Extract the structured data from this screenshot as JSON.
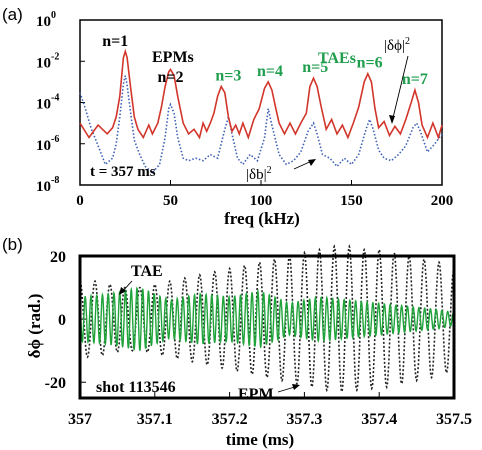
{
  "panel_a": {
    "label": "(a)",
    "xlabel": "freq (kHz)",
    "time_label": "t = 357 ms",
    "group_epm_label": "EPMs",
    "group_tae_label": "TAEs",
    "series_labels": {
      "dphi": "|δϕ|",
      "db": "|δb|",
      "exponent": "2"
    },
    "modes": [
      {
        "label": "n=1",
        "freq": 25,
        "color": "#000000"
      },
      {
        "label": "n=2",
        "freq": 50,
        "color": "#000000"
      },
      {
        "label": "n=3",
        "freq": 82,
        "color": "#1f9e4d"
      },
      {
        "label": "n=4",
        "freq": 105,
        "color": "#1f9e4d"
      },
      {
        "label": "n=5",
        "freq": 130,
        "color": "#1f9e4d"
      },
      {
        "label": "n=6",
        "freq": 160,
        "color": "#1f9e4d"
      },
      {
        "label": "n=7",
        "freq": 185,
        "color": "#1f9e4d"
      }
    ]
  },
  "panel_b": {
    "label": "(b)",
    "xlabel": "time (ms)",
    "ylabel": "δϕ (rad.)",
    "shot_label": "shot 113546",
    "tae_label": "TAE",
    "epm_label": "EPM"
  },
  "colors": {
    "dphi": "#d2362b",
    "db": "#3b5fb5",
    "tae": "#1fa33a",
    "epm": "#222222",
    "tae_text": "#1f9e4d"
  },
  "chart_data": [
    {
      "type": "line",
      "title": "",
      "xlabel": "freq (kHz)",
      "ylabel": "",
      "xlim": [
        0,
        200
      ],
      "ylim": [
        1e-08,
        1
      ],
      "yscale": "log",
      "x_ticks": [
        "0",
        "50",
        "100",
        "150",
        "200"
      ],
      "y_ticks": [
        "10^0",
        "10^-2",
        "10^-4",
        "10^-6",
        "10^-8"
      ],
      "grid": false,
      "series": [
        {
          "name": "|δϕ|^2",
          "x": [
            0,
            5,
            10,
            15,
            18,
            20,
            22,
            24,
            25,
            26,
            28,
            30,
            32,
            35,
            38,
            40,
            43,
            45,
            47,
            49,
            50,
            52,
            54,
            57,
            60,
            63,
            66,
            68,
            70,
            72,
            74,
            76,
            78,
            80,
            82,
            84,
            86,
            88,
            90,
            93,
            96,
            99,
            102,
            104,
            106,
            108,
            110,
            113,
            116,
            119,
            122,
            125,
            127,
            129,
            131,
            133,
            136,
            139,
            142,
            145,
            148,
            151,
            154,
            157,
            159,
            161,
            163,
            165,
            168,
            171,
            174,
            177,
            180,
            183,
            185,
            187,
            189,
            192,
            195,
            198,
            200
          ],
          "y": [
            1e-05,
            2e-06,
            8e-06,
            3e-06,
            6e-06,
            2e-05,
            0.0002,
            0.015,
            0.03,
            0.015,
            0.0005,
            2e-05,
            5e-06,
            2e-06,
            8e-06,
            3e-06,
            1e-05,
            6e-05,
            0.0006,
            0.003,
            0.004,
            0.002,
            0.0002,
            1e-05,
            3e-06,
            5e-06,
            2e-06,
            1e-05,
            4e-06,
            1e-05,
            3e-05,
            0.0002,
            0.0006,
            0.0003,
            2e-05,
            4e-06,
            8e-06,
            3e-06,
            1e-05,
            2e-06,
            1.5e-05,
            5e-05,
            0.0005,
            0.001,
            0.0004,
            6e-05,
            1e-05,
            3e-06,
            1e-05,
            3e-06,
            1e-05,
            3e-05,
            0.0006,
            0.0015,
            0.0006,
            8e-05,
            5e-06,
            1.5e-05,
            3e-06,
            8e-06,
            2e-06,
            1e-05,
            6e-05,
            0.001,
            0.0025,
            0.001,
            5e-05,
            6e-06,
            1.2e-05,
            2.5e-06,
            7e-06,
            3e-06,
            1.5e-05,
            0.0001,
            0.0004,
            0.0001,
            8e-06,
            2e-06,
            1e-05,
            2e-06,
            8e-06
          ]
        },
        {
          "name": "|δb|^2",
          "x": [
            0,
            3,
            6,
            10,
            14,
            18,
            20,
            22,
            24,
            25,
            26,
            28,
            30,
            33,
            36,
            40,
            44,
            47,
            49,
            50,
            52,
            54,
            57,
            60,
            64,
            68,
            72,
            76,
            80,
            82,
            84,
            87,
            90,
            94,
            98,
            102,
            104,
            106,
            110,
            114,
            118,
            122,
            126,
            129,
            131,
            134,
            138,
            142,
            146,
            150,
            154,
            158,
            160,
            162,
            165,
            168,
            172,
            176,
            180,
            184,
            186,
            188,
            192,
            196,
            200
          ],
          "y": [
            0.0003,
            5e-05,
            6e-06,
            8e-07,
            1e-07,
            2e-07,
            1e-06,
            2e-05,
            0.0008,
            0.002,
            0.0007,
            3e-05,
            1.5e-06,
            3e-07,
            8e-08,
            4e-08,
            1e-07,
            2e-06,
            5e-05,
            8e-05,
            3e-05,
            2e-06,
            2e-07,
            1.5e-07,
            2e-07,
            1.5e-07,
            3e-07,
            2e-07,
            5e-06,
            2e-05,
            3e-06,
            2e-07,
            1e-07,
            3e-07,
            1.5e-07,
            2e-06,
            5e-05,
            8e-06,
            3e-07,
            1e-07,
            1.5e-07,
            4e-07,
            4e-06,
            1e-05,
            3e-06,
            3e-07,
            2e-07,
            8e-08,
            2e-07,
            1e-07,
            3e-07,
            5e-06,
            1.5e-05,
            5e-06,
            5e-07,
            2e-07,
            1.5e-07,
            3e-07,
            8e-07,
            6e-06,
            1e-05,
            4e-06,
            4e-07,
            1e-06,
            3e-06
          ]
        }
      ]
    },
    {
      "type": "line",
      "title": "",
      "xlabel": "time (ms)",
      "ylabel": "δϕ (rad.)",
      "xlim": [
        357,
        357.5
      ],
      "ylim": [
        -25,
        20
      ],
      "x_ticks": [
        "357",
        "357.1",
        "357.2",
        "357.3",
        "357.4",
        "357.5"
      ],
      "y_ticks": [
        "20",
        "0",
        "-20"
      ],
      "grid": false,
      "series": [
        {
          "name": "EPM",
          "style": "dotted",
          "description_freq_kHz": 50,
          "t": [
            357,
            357.02,
            357.04,
            357.06,
            357.08,
            357.1,
            357.12,
            357.14,
            357.16,
            357.18,
            357.2,
            357.22,
            357.24,
            357.26,
            357.28,
            357.3,
            357.32,
            357.34,
            357.36,
            357.38,
            357.4,
            357.42,
            357.44,
            357.46,
            357.48,
            357.5
          ],
          "amplitude": [
            12,
            12,
            11,
            10,
            10,
            11,
            12,
            13,
            14,
            15,
            16,
            17,
            18,
            19,
            20,
            21,
            22,
            23,
            23,
            22,
            22,
            21,
            20,
            19,
            18,
            16
          ]
        },
        {
          "name": "TAE",
          "description_freq_kHz": 130,
          "t": [
            357,
            357.04,
            357.08,
            357.12,
            357.16,
            357.2,
            357.24,
            357.28,
            357.32,
            357.36,
            357.4,
            357.44,
            357.48,
            357.5
          ],
          "amplitude": [
            7,
            8,
            10,
            6,
            8,
            7,
            9,
            5,
            7,
            6,
            5,
            4,
            3,
            2
          ]
        }
      ]
    }
  ]
}
